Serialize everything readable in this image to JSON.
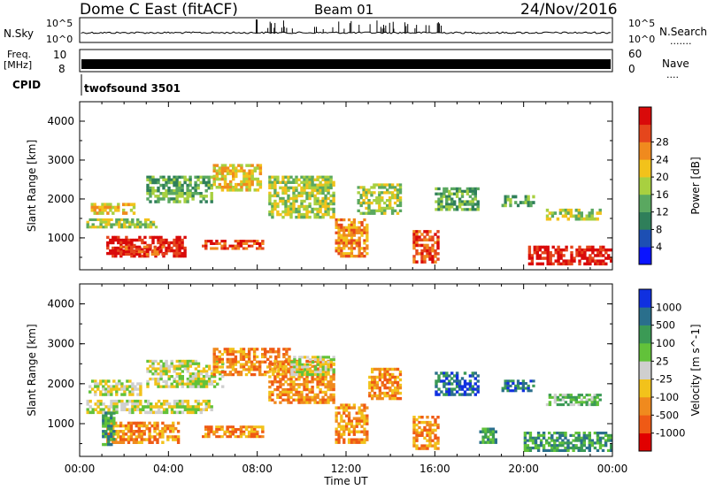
{
  "header": {
    "station": "Dome C East (fitACF)",
    "beam": "Beam 01",
    "date": "24/Nov/2016"
  },
  "strips": {
    "nsky": {
      "label": "N.Sky",
      "left_top": "10^5",
      "left_bottom": "10^0"
    },
    "nsearch": {
      "label": "N.Search",
      "right_top": "10^5",
      "right_bottom": "10^0",
      "dots": "......."
    },
    "freq": {
      "label_top": "Freq.",
      "label_bottom": "[MHz]",
      "left_top": "10",
      "left_bottom": "8"
    },
    "nave": {
      "label": "Nave",
      "right_top": "60",
      "right_bottom": "0",
      "dots": "...."
    },
    "cpid": {
      "label": "CPID",
      "program": "twofsound 3501"
    }
  },
  "colors": {
    "power": [
      "#0a14ff",
      "#1d4fb3",
      "#2f7f5a",
      "#5aa860",
      "#a8d040",
      "#f2c21b",
      "#f08a1e",
      "#e5461c",
      "#d90a0a"
    ],
    "velocity": [
      "#e10000",
      "#ef5a15",
      "#f08a1e",
      "#f2c21b",
      "#cfcfcf",
      "#62c23a",
      "#3b9a55",
      "#2a6f8c",
      "#1030e0"
    ],
    "grey": "#cfcfcf"
  },
  "chart_data": [
    {
      "type": "heatmap",
      "title": "Power",
      "ylabel": "Slant Range [km]",
      "colorbar_label": "Power [dB]",
      "colorbar_ticks": [
        "4",
        "8",
        "12",
        "16",
        "20",
        "24",
        "28"
      ],
      "xlim": [
        "00:00",
        "00:00 (next day)"
      ],
      "ylim": [
        180,
        4500
      ],
      "y_ticks": [
        "1000",
        "2000",
        "3000",
        "4000"
      ],
      "bands": [
        {
          "x0": 0.3,
          "x1": 3.5,
          "y0": 1250,
          "y1": 1500,
          "level": 4
        },
        {
          "x0": 1.2,
          "x1": 4.8,
          "y0": 500,
          "y1": 1050,
          "level": 8
        },
        {
          "x0": 1.8,
          "x1": 3.8,
          "y0": 550,
          "y1": 800,
          "level": 7
        },
        {
          "x0": 0.5,
          "x1": 2.5,
          "y0": 1600,
          "y1": 1900,
          "level": 5
        },
        {
          "x0": 3.0,
          "x1": 6.0,
          "y0": 1900,
          "y1": 2600,
          "level": 3
        },
        {
          "x0": 5.5,
          "x1": 8.3,
          "y0": 700,
          "y1": 950,
          "level": 7
        },
        {
          "x0": 6.0,
          "x1": 8.2,
          "y0": 2200,
          "y1": 2900,
          "level": 5
        },
        {
          "x0": 8.5,
          "x1": 11.5,
          "y0": 1500,
          "y1": 2600,
          "level": 4
        },
        {
          "x0": 11.5,
          "x1": 13.0,
          "y0": 500,
          "y1": 1500,
          "level": 6
        },
        {
          "x0": 12.5,
          "x1": 14.5,
          "y0": 1600,
          "y1": 2400,
          "level": 4
        },
        {
          "x0": 15.0,
          "x1": 16.2,
          "y0": 350,
          "y1": 1200,
          "level": 7
        },
        {
          "x0": 16.0,
          "x1": 18.0,
          "y0": 1700,
          "y1": 2300,
          "level": 3
        },
        {
          "x0": 19.0,
          "x1": 20.5,
          "y0": 1800,
          "y1": 2100,
          "level": 3
        },
        {
          "x0": 20.2,
          "x1": 24.0,
          "y0": 300,
          "y1": 800,
          "level": 8
        },
        {
          "x0": 21.0,
          "x1": 23.5,
          "y0": 1450,
          "y1": 1750,
          "level": 4
        }
      ]
    },
    {
      "type": "heatmap",
      "title": "Velocity",
      "ylabel": "Slant Range [km]",
      "xlabel": "Time UT",
      "colorbar_label": "Velocity [m s^-1]",
      "colorbar_ticks": [
        "-1000",
        "-500",
        "-100",
        "-25",
        "25",
        "100",
        "500",
        "1000"
      ],
      "xlim": [
        "00:00",
        "00:00 (next day)"
      ],
      "x_ticks": [
        "00:00",
        "04:00",
        "08:00",
        "12:00",
        "16:00",
        "20:00",
        "00:00"
      ],
      "ylim": [
        180,
        4500
      ],
      "y_ticks": [
        "1000",
        "2000",
        "3000",
        "4000"
      ],
      "bands": [
        {
          "x0": 0.3,
          "x1": 6.0,
          "y0": 1250,
          "y1": 1600,
          "level": 4
        },
        {
          "x0": 1.2,
          "x1": 4.5,
          "y0": 500,
          "y1": 1050,
          "level": 2
        },
        {
          "x0": 1.0,
          "x1": 1.6,
          "y0": 450,
          "y1": 1300,
          "level": 6
        },
        {
          "x0": 0.4,
          "x1": 2.8,
          "y0": 1700,
          "y1": 2100,
          "level": 4
        },
        {
          "x0": 3.0,
          "x1": 6.5,
          "y0": 1900,
          "y1": 2600,
          "level": 4
        },
        {
          "x0": 5.5,
          "x1": 8.3,
          "y0": 650,
          "y1": 950,
          "level": 2
        },
        {
          "x0": 6.0,
          "x1": 9.5,
          "y0": 2200,
          "y1": 2900,
          "level": 2
        },
        {
          "x0": 8.5,
          "x1": 11.5,
          "y0": 1500,
          "y1": 2600,
          "level": 2
        },
        {
          "x0": 9.5,
          "x1": 11.5,
          "y0": 2200,
          "y1": 2700,
          "level": 4
        },
        {
          "x0": 11.5,
          "x1": 13.0,
          "y0": 500,
          "y1": 1500,
          "level": 2
        },
        {
          "x0": 13.0,
          "x1": 14.5,
          "y0": 1600,
          "y1": 2400,
          "level": 2
        },
        {
          "x0": 15.0,
          "x1": 16.2,
          "y0": 350,
          "y1": 1200,
          "level": 2
        },
        {
          "x0": 16.0,
          "x1": 18.0,
          "y0": 1700,
          "y1": 2300,
          "level": 7
        },
        {
          "x0": 18.0,
          "x1": 18.8,
          "y0": 500,
          "y1": 900,
          "level": 6
        },
        {
          "x0": 20.0,
          "x1": 24.0,
          "y0": 300,
          "y1": 800,
          "level": 6
        },
        {
          "x0": 21.0,
          "x1": 23.5,
          "y0": 1450,
          "y1": 1750,
          "level": 5
        },
        {
          "x0": 19.0,
          "x1": 20.5,
          "y0": 1800,
          "y1": 2100,
          "level": 7
        }
      ]
    }
  ]
}
